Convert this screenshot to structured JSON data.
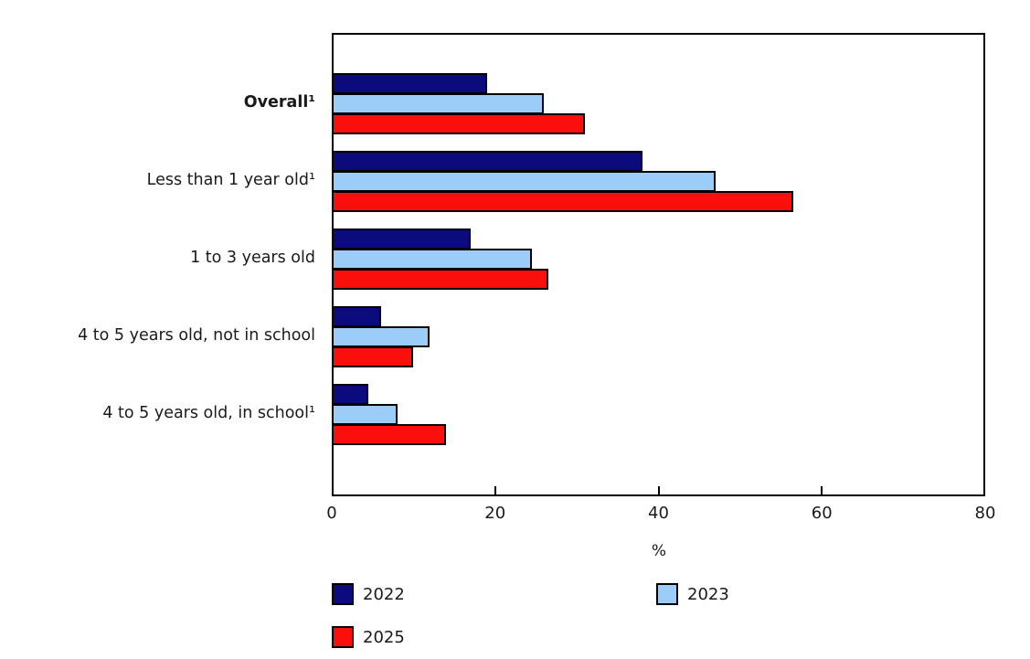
{
  "chart_data": {
    "type": "bar",
    "orientation": "horizontal",
    "title": "",
    "xlabel": "%",
    "ylabel": "",
    "xlim": [
      0,
      80
    ],
    "xticks": [
      0,
      20,
      40,
      60,
      80
    ],
    "grid": false,
    "legend_position": "bottom",
    "categories": [
      "Overall¹",
      "Less than 1 year old¹",
      "1 to 3 years old",
      "4 to 5 years old, not in school",
      "4 to 5 years old, in school¹"
    ],
    "categories_bold": [
      true,
      false,
      false,
      false,
      false
    ],
    "series": [
      {
        "name": "2022",
        "color": "#0b0b7e",
        "values": [
          19,
          38,
          17,
          6,
          4.5
        ]
      },
      {
        "name": "2023",
        "color": "#9cccf8",
        "values": [
          26,
          47,
          24.5,
          12,
          8
        ]
      },
      {
        "name": "2025",
        "color": "#fb0f0c",
        "values": [
          31,
          56.5,
          26.5,
          10,
          14
        ]
      }
    ]
  },
  "colors": {
    "frame": "#000000",
    "text": "#1a1a1a",
    "background": "#ffffff"
  }
}
